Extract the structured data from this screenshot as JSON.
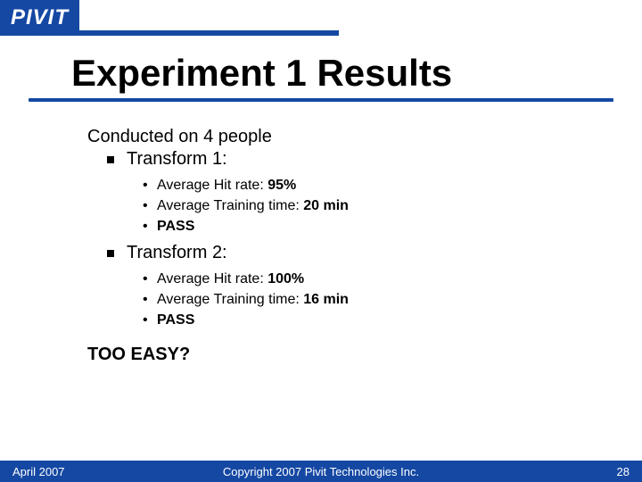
{
  "brand": {
    "logo_text": "PIVIT"
  },
  "colors": {
    "brand_blue": "#1548a3",
    "text": "#000000",
    "bg": "#ffffff",
    "footer_text": "#ffffff"
  },
  "typography": {
    "title_fontsize": 42,
    "body_fontsize": 20,
    "sub_fontsize": 16,
    "footer_fontsize": 13
  },
  "title": "Experiment 1 Results",
  "intro": "Conducted on 4 people",
  "sections": [
    {
      "heading": "Transform 1:",
      "items": [
        {
          "prefix": "Average Hit rate: ",
          "value": "95%"
        },
        {
          "prefix": "Average Training time: ",
          "value": "20 min"
        },
        {
          "prefix": "",
          "value": "PASS"
        }
      ]
    },
    {
      "heading": "Transform 2:",
      "items": [
        {
          "prefix": "Average Hit rate: ",
          "value": "100%"
        },
        {
          "prefix": "Average Training time: ",
          "value": "16 min"
        },
        {
          "prefix": "",
          "value": "PASS"
        }
      ]
    }
  ],
  "conclusion": "TOO EASY?",
  "footer": {
    "date": "April 2007",
    "copyright": "Copyright 2007 Pivit Technologies Inc.",
    "page": "28"
  }
}
